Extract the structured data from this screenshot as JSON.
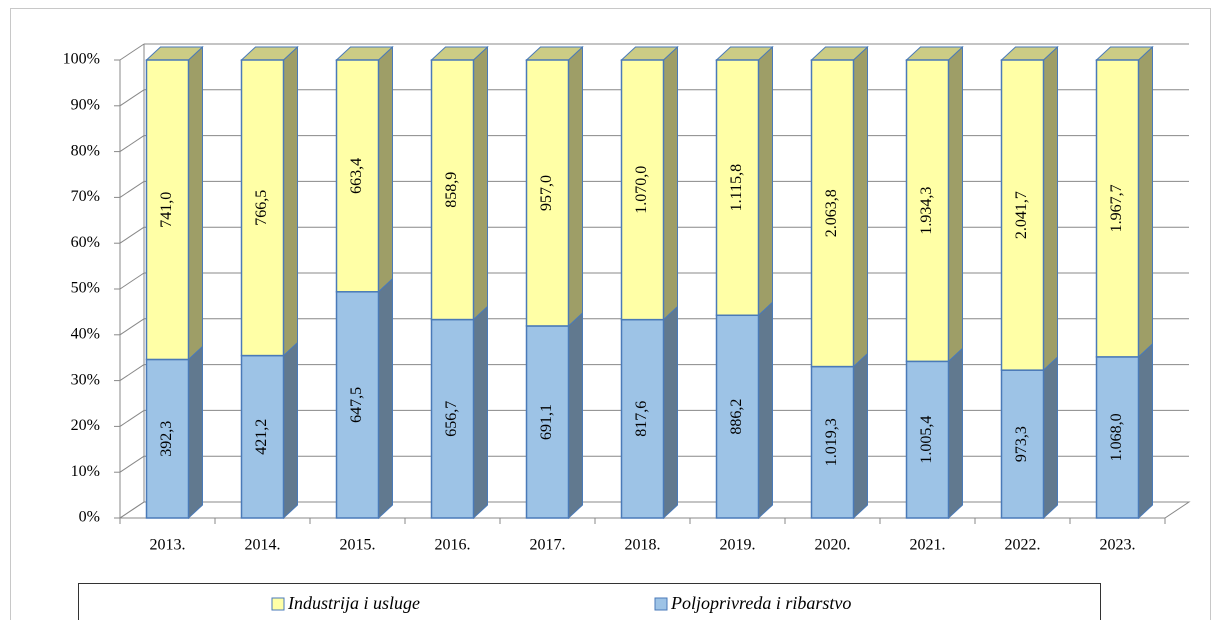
{
  "chart_data": {
    "type": "bar",
    "stack": "percent",
    "categories": [
      "2013.",
      "2014.",
      "2015.",
      "2016.",
      "2017.",
      "2018.",
      "2019.",
      "2020.",
      "2021.",
      "2022.",
      "2023."
    ],
    "series": [
      {
        "name": "Industrija i usluge",
        "color": "#ffffa6",
        "values": [
          741.0,
          766.5,
          663.4,
          858.9,
          957.0,
          1070.0,
          1115.8,
          2063.8,
          1934.3,
          2041.7,
          1967.7
        ],
        "value_labels": [
          "741,0",
          "766,5",
          "663,4",
          "858,9",
          "957,0",
          "1.070,0",
          "1.115,8",
          "2.063,8",
          "1.934,3",
          "2.041,7",
          "1.967,7"
        ]
      },
      {
        "name": "Poljoprivreda i ribarstvo",
        "color": "#9dc3e6",
        "values": [
          392.3,
          421.2,
          647.5,
          656.7,
          691.1,
          817.6,
          886.2,
          1019.3,
          1005.4,
          973.3,
          1068.0
        ],
        "value_labels": [
          "392,3",
          "421,2",
          "647,5",
          "656,7",
          "691,1",
          "817,6",
          "886,2",
          "1.019,3",
          "1.005,4",
          "973,3",
          "1.068,0"
        ]
      }
    ],
    "ylim": [
      0,
      100
    ],
    "yticks": [
      {
        "value": 0,
        "label": "0%"
      },
      {
        "value": 10,
        "label": "10%"
      },
      {
        "value": 20,
        "label": "20%"
      },
      {
        "value": 30,
        "label": "30%"
      },
      {
        "value": 40,
        "label": "40%"
      },
      {
        "value": 50,
        "label": "50%"
      },
      {
        "value": 60,
        "label": "60%"
      },
      {
        "value": 70,
        "label": "70%"
      },
      {
        "value": 80,
        "label": "80%"
      },
      {
        "value": 90,
        "label": "90%"
      },
      {
        "value": 100,
        "label": "100%"
      }
    ],
    "grid": true,
    "legend": "bottom"
  }
}
